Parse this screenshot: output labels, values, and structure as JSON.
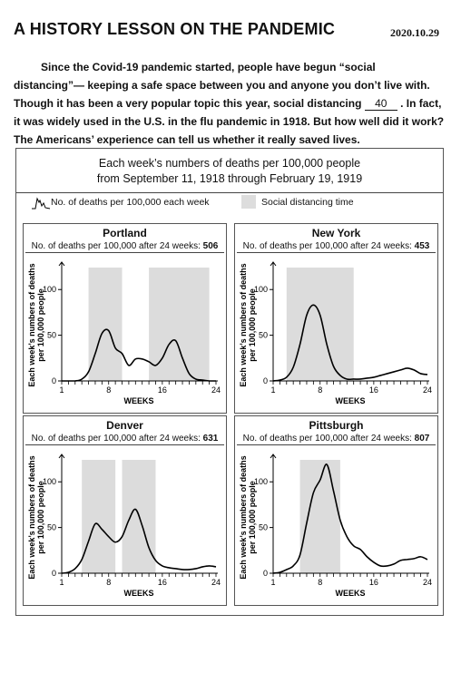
{
  "header": {
    "title": "A HISTORY LESSON ON THE PANDEMIC",
    "date": "2020.10.29"
  },
  "intro": {
    "part1": "Since the Covid-19 pandemic started, people have begun “social distancing”— keeping a safe space between you and anyone you don’t live with.  Though it has been a very popular topic this year, social distancing ",
    "blank_value": "40",
    "part2": " .  In fact, it was widely used in the U.S. in the flu pandemic in 1918.  But how well did it work?  The Americans’ experience can tell us whether it really saved lives."
  },
  "figure": {
    "title_line1": "Each week’s numbers of deaths per 100,000 people",
    "title_line2": "from September 11, 1918 through February 19, 1919",
    "legend_line": "No. of deaths per 100,000 each week",
    "legend_shade": "Social distancing time",
    "subtitle_prefix": "No. of deaths per 100,000 after 24 weeks:",
    "y_axis_label_1": "Each week’s numbers of deaths",
    "y_axis_label_2": "per 100,000 people",
    "x_axis_label": "WEEKS",
    "colors": {
      "shade": "#dcdcdc",
      "line": "#000000",
      "border": "#555555"
    }
  },
  "chart_data": [
    {
      "type": "line",
      "city": "Portland",
      "total_after_24_weeks": "506",
      "x_ticks": [
        "1",
        "8",
        "16",
        "24"
      ],
      "y_ticks": [
        "0",
        "50",
        "100"
      ],
      "ylim": [
        0,
        130
      ],
      "xlim": [
        1,
        24
      ],
      "shaded_ranges": [
        [
          5,
          10
        ],
        [
          14,
          23
        ]
      ],
      "x": [
        1,
        2,
        3,
        4,
        5,
        6,
        7,
        8,
        9,
        10,
        11,
        12,
        13,
        14,
        15,
        16,
        17,
        18,
        19,
        20,
        21,
        22,
        23,
        24
      ],
      "values": [
        0,
        0,
        0,
        2,
        10,
        30,
        52,
        55,
        36,
        30,
        17,
        24,
        24,
        21,
        17,
        25,
        40,
        44,
        25,
        8,
        2,
        1,
        0,
        0
      ]
    },
    {
      "type": "line",
      "city": "New York",
      "total_after_24_weeks": "453",
      "x_ticks": [
        "1",
        "8",
        "16",
        "24"
      ],
      "y_ticks": [
        "0",
        "50",
        "100"
      ],
      "ylim": [
        0,
        130
      ],
      "xlim": [
        1,
        24
      ],
      "shaded_ranges": [
        [
          3,
          13
        ]
      ],
      "x": [
        1,
        2,
        3,
        4,
        5,
        6,
        7,
        8,
        9,
        10,
        11,
        12,
        13,
        14,
        15,
        16,
        17,
        18,
        19,
        20,
        21,
        22,
        23,
        24
      ],
      "values": [
        0,
        1,
        4,
        15,
        40,
        72,
        83,
        72,
        40,
        16,
        6,
        2,
        2,
        2,
        3,
        4,
        6,
        8,
        10,
        12,
        14,
        12,
        8,
        7
      ]
    },
    {
      "type": "line",
      "city": "Denver",
      "total_after_24_weeks": "631",
      "x_ticks": [
        "1",
        "8",
        "16",
        "24"
      ],
      "y_ticks": [
        "0",
        "50",
        "100"
      ],
      "ylim": [
        0,
        130
      ],
      "xlim": [
        1,
        24
      ],
      "shaded_ranges": [
        [
          4,
          9
        ],
        [
          10,
          15
        ]
      ],
      "x": [
        1,
        2,
        3,
        4,
        5,
        6,
        7,
        8,
        9,
        10,
        11,
        12,
        13,
        14,
        15,
        16,
        17,
        18,
        19,
        20,
        21,
        22,
        23,
        24
      ],
      "values": [
        0,
        1,
        5,
        15,
        35,
        54,
        48,
        40,
        34,
        40,
        58,
        70,
        52,
        28,
        14,
        8,
        6,
        5,
        4,
        4,
        5,
        7,
        8,
        7
      ]
    },
    {
      "type": "line",
      "city": "Pittsburgh",
      "total_after_24_weeks": "807",
      "x_ticks": [
        "1",
        "8",
        "16",
        "24"
      ],
      "y_ticks": [
        "0",
        "50",
        "100"
      ],
      "ylim": [
        0,
        130
      ],
      "xlim": [
        1,
        24
      ],
      "shaded_ranges": [
        [
          5,
          11
        ]
      ],
      "x": [
        1,
        2,
        3,
        4,
        5,
        6,
        7,
        8,
        9,
        10,
        11,
        12,
        13,
        14,
        15,
        16,
        17,
        18,
        19,
        20,
        21,
        22,
        23,
        24
      ],
      "values": [
        0,
        1,
        4,
        8,
        20,
        55,
        88,
        102,
        119,
        90,
        58,
        40,
        30,
        26,
        18,
        12,
        8,
        8,
        10,
        14,
        15,
        16,
        18,
        15
      ]
    }
  ]
}
